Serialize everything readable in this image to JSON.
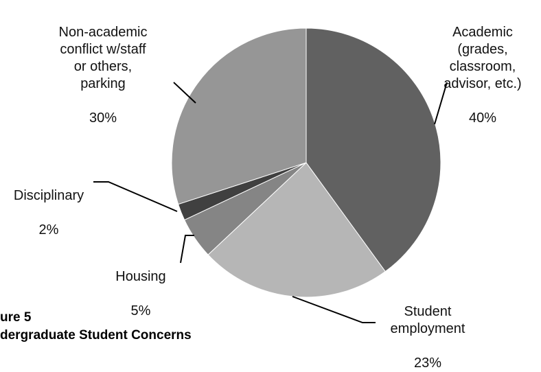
{
  "chart_data": {
    "type": "pie",
    "slices": [
      {
        "label": "Academic\n(grades,\nclassroom,\nadvisor, etc.)",
        "percent_label": "40%",
        "value": 40,
        "color": "#616161"
      },
      {
        "label": "Student\nemployment",
        "percent_label": "23%",
        "value": 23,
        "color": "#b6b6b6"
      },
      {
        "label": "Housing",
        "percent_label": "5%",
        "value": 5,
        "color": "#858585"
      },
      {
        "label": "Disciplinary",
        "percent_label": "2%",
        "value": 2,
        "color": "#404040"
      },
      {
        "label": "Non-academic\nconflict w/staff\nor others,\nparking",
        "percent_label": "30%",
        "value": 30,
        "color": "#969696"
      }
    ]
  },
  "caption": {
    "figure_label": "ure 5",
    "title": "dergraduate Student Concerns"
  }
}
